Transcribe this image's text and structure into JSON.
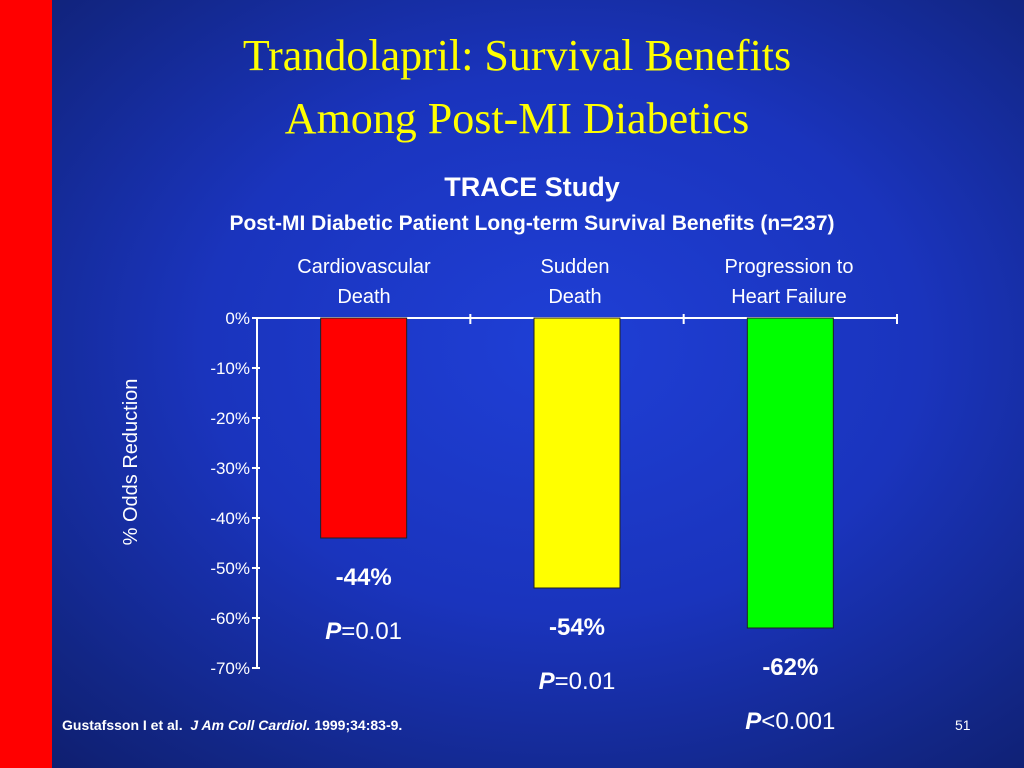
{
  "slide": {
    "title_line1": "Trandolapril: Survival Benefits",
    "title_line2": "Among Post-MI Diabetics",
    "subtitle": "TRACE Study",
    "subtitle2": "Post-MI Diabetic Patient Long-term Survival Benefits (n=237)",
    "footer": {
      "authors": "Gustafsson I et al.",
      "journal": "J Am Coll Cardiol.",
      "ref": "1999;34:83-9."
    },
    "page_number": "51"
  },
  "chart_data": {
    "type": "bar",
    "categories": [
      [
        "Cardiovascular",
        "Death"
      ],
      [
        "Sudden",
        "Death"
      ],
      [
        "Progression to",
        "Heart Failure"
      ]
    ],
    "values": [
      -44,
      -54,
      -62
    ],
    "value_labels": [
      "-44%",
      "-54%",
      "-62%"
    ],
    "p_values": [
      {
        "prefix": "P",
        "rest": "=0.01"
      },
      {
        "prefix": "P",
        "rest": "=0.01"
      },
      {
        "prefix": "P",
        "rest": "<0.001"
      }
    ],
    "colors": [
      "#ff0000",
      "#ffff00",
      "#00ff00"
    ],
    "ylabel": "% Odds Reduction",
    "ylim": [
      -70,
      0
    ],
    "yticks": [
      0,
      -10,
      -20,
      -30,
      -40,
      -50,
      -60,
      -70
    ],
    "ytick_labels": [
      "0%",
      "-10%",
      "-20%",
      "-30%",
      "-40%",
      "-50%",
      "-60%",
      "-70%"
    ]
  }
}
